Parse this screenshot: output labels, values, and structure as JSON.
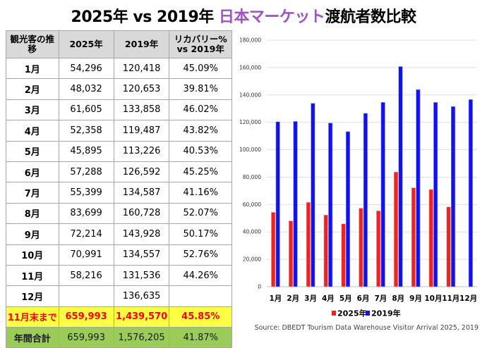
{
  "title": {
    "prefix": "2025年 vs 2019年 ",
    "accent": "日本マーケット",
    "suffix": "渡航者数比較",
    "accent_color": "#a050c8"
  },
  "table": {
    "headers": [
      "観光客の推移",
      "2025年",
      "2019年",
      "リカバリー% vs 2019年"
    ],
    "rows": [
      {
        "month": "1月",
        "y2025": "54,296",
        "y2019": "120,418",
        "recovery": "45.09%"
      },
      {
        "month": "2月",
        "y2025": "48,032",
        "y2019": "120,653",
        "recovery": "39.81%"
      },
      {
        "month": "3月",
        "y2025": "61,605",
        "y2019": "133,858",
        "recovery": "46.02%"
      },
      {
        "month": "4月",
        "y2025": "52,358",
        "y2019": "119,487",
        "recovery": "43.82%"
      },
      {
        "month": "5月",
        "y2025": "45,895",
        "y2019": "113,226",
        "recovery": "40.53%"
      },
      {
        "month": "6月",
        "y2025": "57,288",
        "y2019": "126,592",
        "recovery": "45.25%"
      },
      {
        "month": "7月",
        "y2025": "55,399",
        "y2019": "134,587",
        "recovery": "41.16%"
      },
      {
        "month": "8月",
        "y2025": "83,699",
        "y2019": "160,728",
        "recovery": "52.07%"
      },
      {
        "month": "9月",
        "y2025": "72,214",
        "y2019": "143,928",
        "recovery": "50.17%"
      },
      {
        "month": "10月",
        "y2025": "70,991",
        "y2019": "134,557",
        "recovery": "52.76%"
      },
      {
        "month": "11月",
        "y2025": "58,216",
        "y2019": "131,536",
        "recovery": "44.26%"
      },
      {
        "month": "12月",
        "y2025": "",
        "y2019": "136,635",
        "recovery": ""
      }
    ],
    "ytd": {
      "label": "11月末まで",
      "y2025": "659,993",
      "y2019": "1,439,570",
      "recovery": "45.85%"
    },
    "total": {
      "label": "年間合計",
      "y2025": "659,993",
      "y2019": "1,576,205",
      "recovery": "41.87%"
    }
  },
  "chart_data": {
    "type": "bar",
    "title": "",
    "xlabel": "",
    "ylabel": "",
    "categories": [
      "1月",
      "2月",
      "3月",
      "4月",
      "5月",
      "6月",
      "7月",
      "8月",
      "9月",
      "10月",
      "11月",
      "12月"
    ],
    "series": [
      {
        "name": "2025年",
        "color": "#ee2222",
        "values": [
          54296,
          48032,
          61605,
          52358,
          45895,
          57288,
          55399,
          83699,
          72214,
          70991,
          58216,
          null
        ]
      },
      {
        "name": "2019年",
        "color": "#1111ee",
        "values": [
          120418,
          120653,
          133858,
          119487,
          113226,
          126592,
          134587,
          160728,
          143928,
          134557,
          131536,
          136635
        ]
      }
    ],
    "ylim": [
      0,
      180000
    ],
    "yticks": [
      0,
      20000,
      40000,
      60000,
      80000,
      100000,
      120000,
      140000,
      160000,
      180000
    ],
    "ytick_labels": [
      "0",
      "20,000",
      "40,000",
      "60,000",
      "80,000",
      "100,000",
      "120,000",
      "140,000",
      "160,000",
      "180,000"
    ],
    "grid": true,
    "legend": "bottom"
  },
  "source": "Source: DBEDT Tourism Data Warehouse Visitor Arrival 2025, 2019"
}
